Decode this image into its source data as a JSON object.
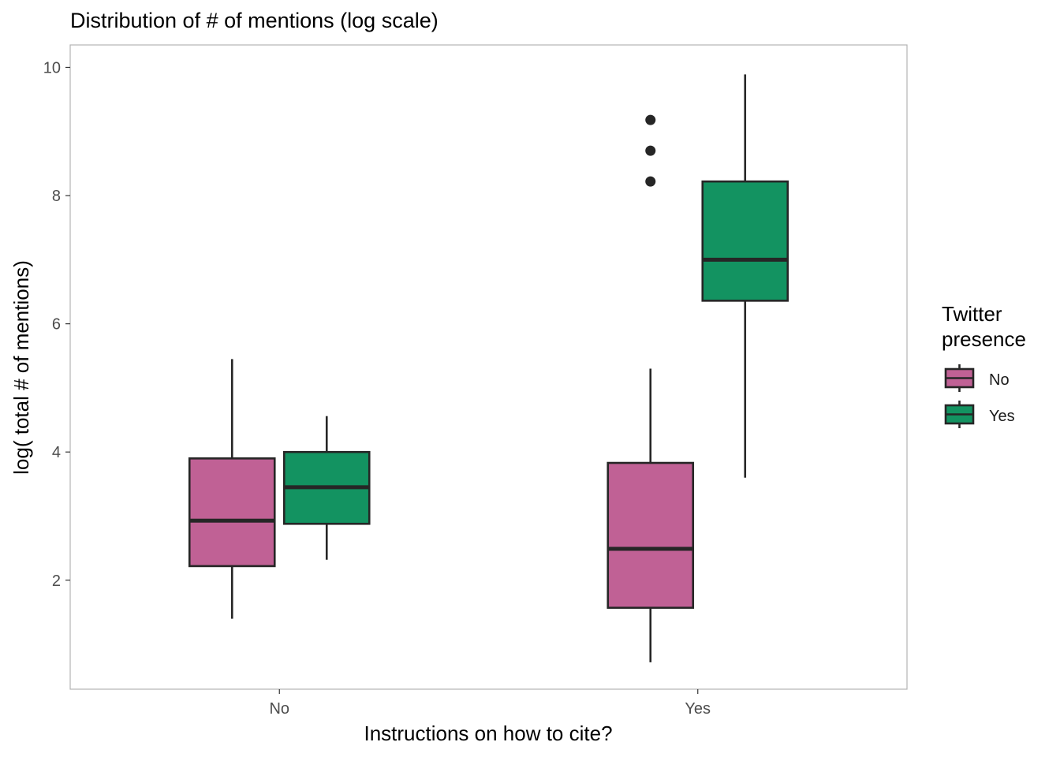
{
  "chart_data": {
    "type": "boxplot",
    "title": "Distribution of # of mentions (log scale)",
    "xlabel": "Instructions on how to cite?",
    "ylabel": "log( total # of mentions)",
    "categories": [
      "No",
      "Yes"
    ],
    "ylim": [
      0.3,
      10.35
    ],
    "yticks": [
      "2",
      "4",
      "6",
      "8",
      "10"
    ],
    "grid": false,
    "legend": {
      "title_lines": [
        "Twitter",
        "presence"
      ],
      "placement": "right",
      "entries": [
        "No",
        "Yes"
      ]
    },
    "series": [
      {
        "name": "No",
        "color": "#C06195",
        "boxes": [
          {
            "category": "No",
            "lower_whisker": 1.4,
            "q1": 2.22,
            "median": 2.93,
            "q3": 3.9,
            "upper_whisker": 5.45,
            "outliers": []
          },
          {
            "category": "Yes",
            "lower_whisker": 0.72,
            "q1": 1.57,
            "median": 2.49,
            "q3": 3.83,
            "upper_whisker": 5.3,
            "outliers": []
          }
        ]
      },
      {
        "name": "Yes",
        "color": "#139361",
        "boxes": [
          {
            "category": "No",
            "lower_whisker": 2.32,
            "q1": 2.88,
            "median": 3.45,
            "q3": 4.0,
            "upper_whisker": 4.56,
            "outliers": []
          },
          {
            "category": "Yes",
            "lower_whisker": 3.6,
            "q1": 6.36,
            "median": 7.0,
            "q3": 8.22,
            "upper_whisker": 9.89,
            "outliers": [
              8.22,
              8.7,
              9.18
            ]
          }
        ]
      }
    ]
  }
}
